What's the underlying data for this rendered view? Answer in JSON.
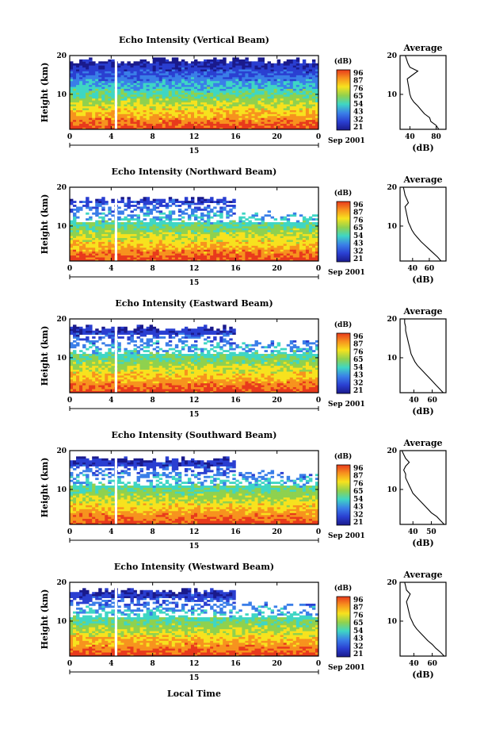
{
  "figure": {
    "xlabel": "Local Time",
    "date_label": "Sep 2001",
    "day_label": "15"
  },
  "colorbar": {
    "unit": "(dB)",
    "ticks": [
      "96",
      "87",
      "76",
      "65",
      "54",
      "43",
      "32",
      "21"
    ],
    "colors": [
      "#e83a1c",
      "#f7931e",
      "#f7e21e",
      "#8fd14f",
      "#3fd6c4",
      "#3a7ee8",
      "#2a3fd1",
      "#1a1a8c"
    ]
  },
  "chart_data": [
    {
      "type": "heatmap",
      "title": "Echo Intensity (Vertical Beam)",
      "ylabel": "Height (km)",
      "x_ticks": [
        "0",
        "4",
        "8",
        "12",
        "16",
        "20",
        "0"
      ],
      "y_ticks": [
        "20",
        "10"
      ],
      "xlim": [
        0,
        24
      ],
      "ylim": [
        1,
        20
      ],
      "profile_title": "Average",
      "profile_xlabel": "(dB)",
      "profile_x_ticks": [
        "40",
        "80"
      ],
      "profile_y_ticks": [
        "20",
        "10"
      ],
      "profile_xlim": [
        25,
        95
      ],
      "echo_top_km": 19.5,
      "profile": {
        "height_km": [
          1,
          2,
          3,
          4,
          5,
          6,
          7,
          8,
          9,
          10,
          11,
          12,
          13,
          14,
          15,
          16,
          17,
          18,
          19,
          20
        ],
        "avg_db": [
          84,
          80,
          72,
          70,
          62,
          57,
          52,
          46,
          42,
          40,
          39,
          38,
          37,
          36,
          44,
          52,
          40,
          37,
          35,
          33
        ]
      }
    },
    {
      "type": "heatmap",
      "title": "Echo Intensity (Northward Beam)",
      "ylabel": "Height (km)",
      "x_ticks": [
        "0",
        "4",
        "8",
        "12",
        "16",
        "20",
        "0"
      ],
      "y_ticks": [
        "20",
        "10"
      ],
      "xlim": [
        0,
        24
      ],
      "ylim": [
        1,
        20
      ],
      "profile_title": "Average",
      "profile_xlabel": "(dB)",
      "profile_x_ticks": [
        "40",
        "60"
      ],
      "profile_y_ticks": [
        "20",
        "10"
      ],
      "profile_xlim": [
        25,
        80
      ],
      "echo_top_km": 17.5,
      "profile": {
        "height_km": [
          1,
          2,
          3,
          4,
          5,
          6,
          7,
          8,
          9,
          10,
          11,
          12,
          13,
          14,
          15,
          16,
          17,
          18,
          19,
          20
        ],
        "avg_db": [
          74,
          70,
          65,
          60,
          55,
          50,
          46,
          42,
          39,
          37,
          35,
          34,
          33,
          32,
          31,
          35,
          33,
          31,
          30,
          29
        ]
      }
    },
    {
      "type": "heatmap",
      "title": "Echo Intensity (Eastward Beam)",
      "ylabel": "Height (km)",
      "x_ticks": [
        "0",
        "4",
        "8",
        "12",
        "16",
        "20",
        "0"
      ],
      "y_ticks": [
        "20",
        "10"
      ],
      "xlim": [
        0,
        24
      ],
      "ylim": [
        1,
        20
      ],
      "profile_title": "Average",
      "profile_xlabel": "(dB)",
      "profile_x_ticks": [
        "40",
        "60"
      ],
      "profile_y_ticks": [
        "20",
        "10"
      ],
      "profile_xlim": [
        25,
        75
      ],
      "echo_top_km": 18.5,
      "profile": {
        "height_km": [
          1,
          2,
          3,
          4,
          5,
          6,
          7,
          8,
          9,
          10,
          11,
          12,
          13,
          14,
          15,
          16,
          17,
          18,
          19,
          20
        ],
        "avg_db": [
          72,
          68,
          64,
          60,
          56,
          52,
          48,
          44,
          41,
          39,
          37,
          36,
          35,
          34,
          33,
          32,
          31,
          31,
          30,
          30
        ]
      }
    },
    {
      "type": "heatmap",
      "title": "Echo Intensity (Southward Beam)",
      "ylabel": "Height (km)",
      "x_ticks": [
        "0",
        "4",
        "8",
        "12",
        "16",
        "20",
        "0"
      ],
      "y_ticks": [
        "20",
        "10"
      ],
      "xlim": [
        0,
        24
      ],
      "ylim": [
        1,
        20
      ],
      "profile_title": "Average",
      "profile_xlabel": "(dB)",
      "profile_x_ticks": [
        "40",
        "50"
      ],
      "profile_y_ticks": [
        "20",
        "10"
      ],
      "profile_xlim": [
        33,
        58
      ],
      "echo_top_km": 18.5,
      "profile": {
        "height_km": [
          1,
          2,
          3,
          4,
          5,
          6,
          7,
          8,
          9,
          10,
          11,
          12,
          13,
          14,
          15,
          16,
          17,
          18,
          19,
          20
        ],
        "avg_db": [
          57,
          55,
          53,
          50,
          48,
          46,
          44,
          42,
          40,
          39,
          38,
          37,
          36,
          36,
          35,
          36,
          38,
          36,
          35,
          34
        ]
      }
    },
    {
      "type": "heatmap",
      "title": "Echo Intensity (Westward Beam)",
      "ylabel": "Height (km)",
      "x_ticks": [
        "0",
        "4",
        "8",
        "12",
        "16",
        "20",
        "0"
      ],
      "y_ticks": [
        "20",
        "10"
      ],
      "xlim": [
        0,
        24
      ],
      "ylim": [
        1,
        20
      ],
      "profile_title": "Average",
      "profile_xlabel": "(dB)",
      "profile_x_ticks": [
        "40",
        "60"
      ],
      "profile_y_ticks": [
        "20",
        "10"
      ],
      "profile_xlim": [
        25,
        75
      ],
      "echo_top_km": 18.5,
      "profile": {
        "height_km": [
          1,
          2,
          3,
          4,
          5,
          6,
          7,
          8,
          9,
          10,
          11,
          12,
          13,
          14,
          15,
          16,
          17,
          18,
          19,
          20
        ],
        "avg_db": [
          73,
          69,
          64,
          60,
          55,
          51,
          47,
          43,
          40,
          38,
          36,
          35,
          34,
          33,
          32,
          34,
          36,
          32,
          31,
          30
        ]
      }
    }
  ]
}
